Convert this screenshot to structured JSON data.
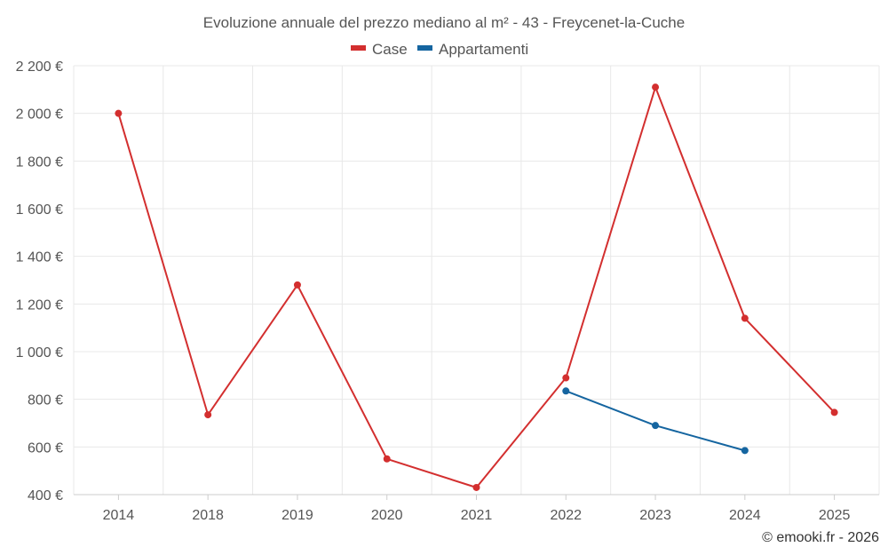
{
  "chart_data": {
    "type": "line",
    "title": "Evoluzione annuale del prezzo mediano al m² - 43 - Freycenet-la-Cuche",
    "categories": [
      "2014",
      "2018",
      "2019",
      "2020",
      "2021",
      "2022",
      "2023",
      "2024",
      "2025"
    ],
    "series": [
      {
        "name": "Case",
        "color": "#d32f2f",
        "values": [
          2000,
          735,
          1280,
          550,
          430,
          890,
          2110,
          1140,
          745
        ]
      },
      {
        "name": "Appartamenti",
        "color": "#1565a0",
        "values": [
          null,
          null,
          null,
          null,
          null,
          835,
          690,
          585,
          null
        ]
      }
    ],
    "ylim": [
      400,
      2200
    ],
    "yticks": [
      400,
      600,
      800,
      1000,
      1200,
      1400,
      1600,
      1800,
      2000,
      2200
    ],
    "ytick_labels": [
      "400 €",
      "600 €",
      "800 €",
      "1 000 €",
      "1 200 €",
      "1 400 €",
      "1 600 €",
      "1 800 €",
      "2 000 €",
      "2 200 €"
    ],
    "xlabel": "",
    "ylabel": "",
    "grid": true,
    "legend": "top-center"
  },
  "credit": "© emooki.fr - 2026"
}
